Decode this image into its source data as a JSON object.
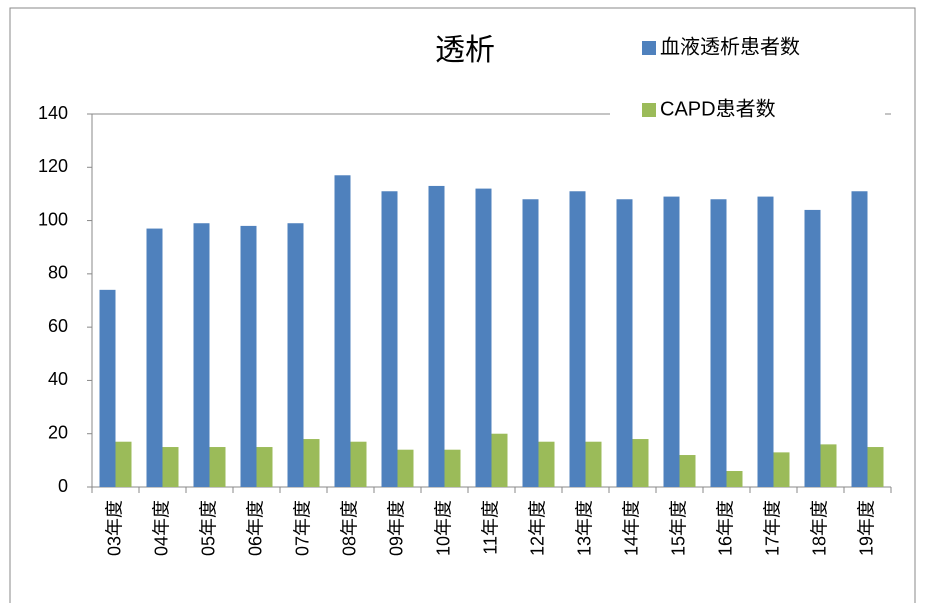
{
  "chart_data": {
    "type": "bar",
    "title": "透析",
    "categories": [
      "03年度",
      "04年度",
      "05年度",
      "06年度",
      "07年度",
      "08年度",
      "09年度",
      "10年度",
      "11年度",
      "12年度",
      "13年度",
      "14年度",
      "15年度",
      "16年度",
      "17年度",
      "18年度",
      "19年度"
    ],
    "series": [
      {
        "name": "血液透析患者数",
        "color": "#4f81bd",
        "values": [
          74,
          97,
          99,
          98,
          99,
          117,
          111,
          113,
          112,
          108,
          111,
          108,
          109,
          108,
          109,
          104,
          111
        ]
      },
      {
        "name": "CAPD患者数",
        "color": "#9bbb59",
        "values": [
          17,
          15,
          15,
          15,
          18,
          17,
          14,
          14,
          20,
          17,
          17,
          18,
          12,
          6,
          13,
          16,
          15
        ]
      }
    ],
    "ylim": [
      0,
      140
    ],
    "yticks": [
      0,
      20,
      40,
      60,
      80,
      100,
      120,
      140
    ],
    "grid": false,
    "legend": "top-right"
  }
}
